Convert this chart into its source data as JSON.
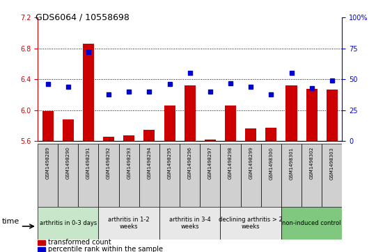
{
  "title": "GDS6064 / 10558698",
  "samples": [
    "GSM1498289",
    "GSM1498290",
    "GSM1498291",
    "GSM1498292",
    "GSM1498293",
    "GSM1498294",
    "GSM1498295",
    "GSM1498296",
    "GSM1498297",
    "GSM1498298",
    "GSM1498299",
    "GSM1498300",
    "GSM1498301",
    "GSM1498302",
    "GSM1498303"
  ],
  "transformed_count": [
    5.99,
    5.88,
    6.86,
    5.66,
    5.67,
    5.75,
    6.06,
    6.32,
    5.62,
    6.06,
    5.76,
    5.77,
    6.32,
    6.28,
    6.27
  ],
  "percentile_rank": [
    46,
    44,
    72,
    38,
    40,
    40,
    46,
    55,
    40,
    47,
    44,
    38,
    55,
    43,
    49
  ],
  "ylim_left": [
    5.6,
    7.2
  ],
  "ylim_right": [
    0,
    100
  ],
  "yticks_left": [
    5.6,
    6.0,
    6.4,
    6.8,
    7.2
  ],
  "yticks_right": [
    0,
    25,
    50,
    75,
    100
  ],
  "groups": [
    {
      "label": "arthritis in 0-3 days",
      "start": 0,
      "end": 3,
      "color": "#c8e6c9"
    },
    {
      "label": "arthritis in 1-2\nweeks",
      "start": 3,
      "end": 6,
      "color": "#e8e8e8"
    },
    {
      "label": "arthritis in 3-4\nweeks",
      "start": 6,
      "end": 9,
      "color": "#e8e8e8"
    },
    {
      "label": "declining arthritis > 2\nweeks",
      "start": 9,
      "end": 12,
      "color": "#e8e8e8"
    },
    {
      "label": "non-induced control",
      "start": 12,
      "end": 15,
      "color": "#80c880"
    }
  ],
  "bar_color": "#cc0000",
  "dot_color": "#0000cc",
  "bar_bottom": 5.6,
  "col_box_color": "#d0d0d0",
  "group_colors": [
    "#c8e6c9",
    "#e8e8e8",
    "#e8e8e8",
    "#e8e8e8",
    "#80c880"
  ]
}
